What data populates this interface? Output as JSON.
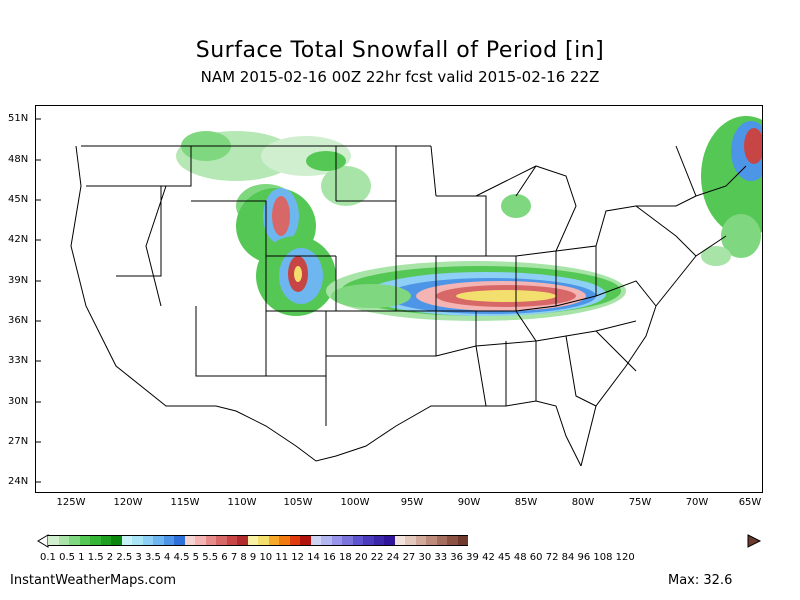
{
  "header": {
    "title": "Surface Total Snowfall of Period [in]",
    "subtitle": "NAM 2015-02-16 00Z 22hr fcst valid 2015-02-16 22Z"
  },
  "axes": {
    "lat_labels": [
      "51N",
      "48N",
      "45N",
      "42N",
      "39N",
      "36N",
      "33N",
      "30N",
      "27N",
      "24N"
    ],
    "lon_labels": [
      "125W",
      "120W",
      "115W",
      "110W",
      "105W",
      "100W",
      "95W",
      "90W",
      "85W",
      "80W",
      "75W",
      "70W",
      "65W"
    ]
  },
  "legend": {
    "colors": [
      "#cfefcf",
      "#a8e4a8",
      "#7fd77f",
      "#55c755",
      "#35b435",
      "#1f9f1f",
      "#0c860c",
      "#c7f2f7",
      "#a8e5f7",
      "#8ed0f5",
      "#6eb6ef",
      "#4d95e6",
      "#2f6fd9",
      "#f5d3d3",
      "#f4b4b4",
      "#e68a8a",
      "#d86767",
      "#c84545",
      "#b02c2c",
      "#f7f0a5",
      "#f3df6d",
      "#f6a82b",
      "#f07a10",
      "#e03a0f",
      "#b0120c",
      "#cfd3f4",
      "#b2b6f1",
      "#9894ea",
      "#7a74dc",
      "#5f54cf",
      "#4a3bbd",
      "#3b27aa",
      "#2e1599",
      "#f1e3dc",
      "#e3c8bc",
      "#d2aa9b",
      "#bd8b7a",
      "#a56d5d",
      "#8b5243",
      "#6e3a2e"
    ],
    "labels": "0.1 0.5  1  1.5  2  2.5  3  3.5  4  4.5  5  5.5  6   7   8   9  10  11  12  14  16  18  20  22  24  27  30  33  36  39  42  45  48  60  72  84  96 108 120"
  },
  "footer": {
    "site": "InstantWeatherMaps.com",
    "max_text": "Max:  32.6"
  }
}
